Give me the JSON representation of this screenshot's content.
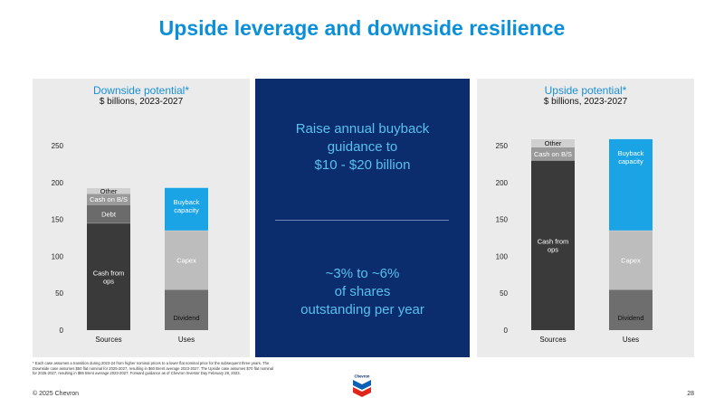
{
  "page": {
    "title": "Upside leverage and downside resilience",
    "copyright": "© 2025 Chevron",
    "page_number": "28",
    "footnote": "* Each case assumes a transition during 2023-24 from higher nominal prices to a lower flat nominal price for the subsequent three years. The Downside case assumes $50 flat nominal for 2025-2027, resulting in $60 Brent average 2023-2027. The Upside case assumes $70 flat nominal for 2025-2027, resulting in $85 Brent average 2023-2027. Forward guidance as of Chevron Investor Day February 28, 2023.",
    "logo_text": "Chevron"
  },
  "center": {
    "message1": "Raise annual buyback\nguidance to\n$10 - $20 billion",
    "message2": "~3% to ~6%\nof shares\noutstanding per year"
  },
  "colors": {
    "blue": "#1aa4e6",
    "navy": "#0b2d6e",
    "cash_from_ops": "#3a3a3a",
    "debt": "#6b6b6b",
    "cash_on_bs": "#9a9a9a",
    "other": "#d0d0d0",
    "capex": "#bdbdbd",
    "dividend": "#6e6e6e"
  },
  "chart_data": [
    {
      "type": "bar",
      "stacked": true,
      "title": "Downside potential*",
      "subtitle": "$ billions, 2023-2027",
      "categories": [
        "Sources",
        "Uses"
      ],
      "ylim": [
        0,
        250
      ],
      "yticks": [
        0,
        50,
        100,
        150,
        200,
        250
      ],
      "grid": false,
      "series": [
        {
          "name": "Cash from ops",
          "values": [
            145,
            0
          ],
          "color": "#3a3a3a",
          "label_color": "#ffffff"
        },
        {
          "name": "Debt",
          "values": [
            25,
            0
          ],
          "color": "#6b6b6b",
          "label_color": "#ffffff"
        },
        {
          "name": "Cash on B/S",
          "values": [
            15,
            0
          ],
          "color": "#9a9a9a",
          "label_color": "#ffffff"
        },
        {
          "name": "Other",
          "values": [
            8,
            0
          ],
          "color": "#d0d0d0",
          "label_color": "#111111"
        },
        {
          "name": "Dividend",
          "values": [
            0,
            55
          ],
          "color": "#6e6e6e",
          "label_color": "#111111"
        },
        {
          "name": "Capex",
          "values": [
            0,
            80
          ],
          "color": "#bdbdbd",
          "label_color": "#ffffff"
        },
        {
          "name": "Buyback capacity",
          "values": [
            0,
            58
          ],
          "color": "#1aa4e6",
          "label_color": "#ffffff"
        }
      ]
    },
    {
      "type": "bar",
      "stacked": true,
      "title": "Upside potential*",
      "subtitle": "$ billions, 2023-2027",
      "categories": [
        "Sources",
        "Uses"
      ],
      "ylim": [
        0,
        250
      ],
      "yticks": [
        0,
        50,
        100,
        150,
        200,
        250
      ],
      "grid": false,
      "series": [
        {
          "name": "Cash from ops",
          "values": [
            230,
            0
          ],
          "color": "#3a3a3a",
          "label_color": "#ffffff"
        },
        {
          "name": "Cash on B/S",
          "values": [
            18,
            0
          ],
          "color": "#9a9a9a",
          "label_color": "#ffffff"
        },
        {
          "name": "Other",
          "values": [
            11,
            0
          ],
          "color": "#d0d0d0",
          "label_color": "#111111"
        },
        {
          "name": "Dividend",
          "values": [
            0,
            55
          ],
          "color": "#6e6e6e",
          "label_color": "#111111"
        },
        {
          "name": "Capex",
          "values": [
            0,
            80
          ],
          "color": "#bdbdbd",
          "label_color": "#ffffff"
        },
        {
          "name": "Buyback capacity",
          "values": [
            0,
            124
          ],
          "color": "#1aa4e6",
          "label_color": "#ffffff"
        }
      ]
    }
  ]
}
